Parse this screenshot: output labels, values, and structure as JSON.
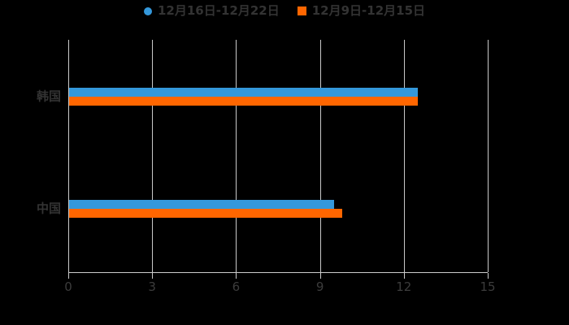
{
  "chart_data": {
    "type": "bar",
    "orientation": "horizontal",
    "title": "",
    "categories": [
      "韩国",
      "中国"
    ],
    "series": [
      {
        "name": "12月16日-12月22日",
        "marker": "circle",
        "color": "#3498db",
        "values": [
          12.5,
          9.5
        ]
      },
      {
        "name": "12月9日-12月15日",
        "marker": "square",
        "color": "#ff6600",
        "values": [
          12.5,
          9.8
        ]
      }
    ],
    "xlim": [
      0,
      15
    ],
    "xticks": [
      0,
      3,
      6,
      9,
      12,
      15
    ],
    "grid": "vertical-gridlines",
    "legend_position": "top-center",
    "colors": {
      "background": "#000000",
      "axis": "#cccccc",
      "legend_text": "#333333",
      "tick_text": "#3c3c3c"
    }
  }
}
